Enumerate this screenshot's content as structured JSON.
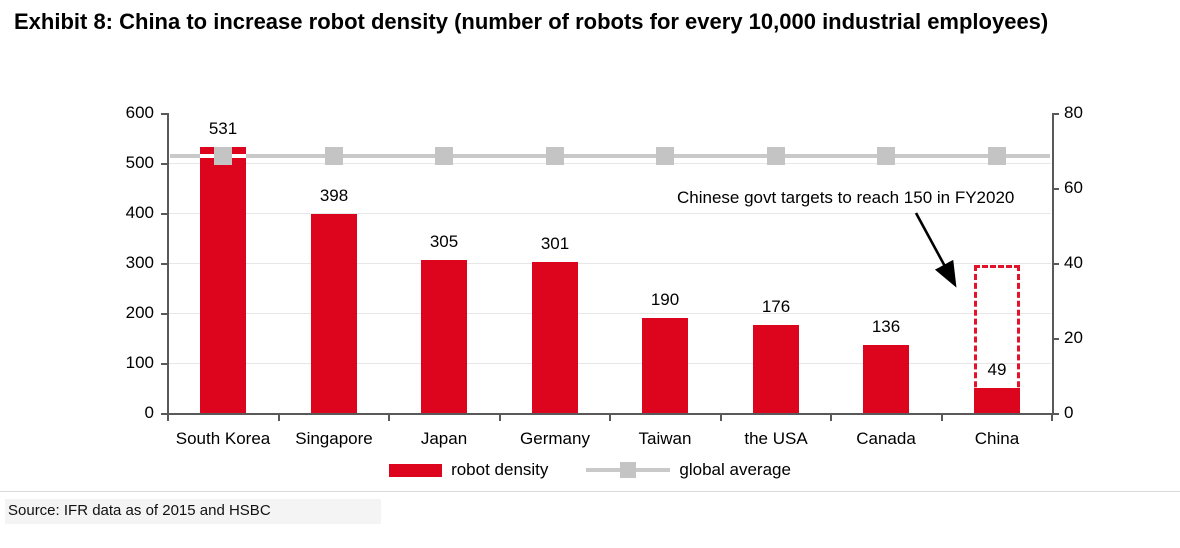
{
  "title": "Exhibit 8: China to increase robot density (number of robots for every 10,000 industrial employees)",
  "source": "Source: IFR data as of 2015 and HSBC",
  "colors": {
    "bar_red": "#dd051e",
    "dashed_red": "#e2132a",
    "line_gray": "#c9c9c9",
    "marker_gray": "#c4c4c4",
    "axis_gray": "#595959",
    "gridline_gray": "#e7e7e7",
    "text_black": "#000000"
  },
  "chart_data": {
    "type": "bar",
    "title": "Exhibit 8: China to increase robot density (number of robots for every 10,000 industrial employees)",
    "categories": [
      "South Korea",
      "Singapore",
      "Japan",
      "Germany",
      "Taiwan",
      "the USA",
      "Canada",
      "China"
    ],
    "series": [
      {
        "name": "robot density",
        "type": "bar",
        "axis": "left",
        "values": [
          531,
          398,
          305,
          301,
          190,
          176,
          136,
          49
        ]
      },
      {
        "name": "global average",
        "type": "line",
        "axis": "right",
        "values": [
          69,
          69,
          69,
          69,
          69,
          69,
          69,
          69
        ]
      }
    ],
    "left_axis": {
      "min": 0,
      "max": 600,
      "step": 100,
      "tick_labels": [
        "600",
        "500",
        "400",
        "300",
        "200",
        "100",
        "0"
      ]
    },
    "right_axis": {
      "min": 0,
      "max": 80,
      "step": 20,
      "tick_labels": [
        "80",
        "60",
        "40",
        "20",
        "0"
      ]
    },
    "grid": true,
    "legend_position": "bottom",
    "legend": [
      {
        "label": "robot density"
      },
      {
        "label": "global average"
      }
    ],
    "annotation": {
      "text": "Chinese govt targets to reach 150 in FY2020",
      "target_value_text": "150",
      "target_box": {
        "category": "China",
        "top_value_left_axis": 297,
        "style": "red-dashed"
      }
    }
  }
}
